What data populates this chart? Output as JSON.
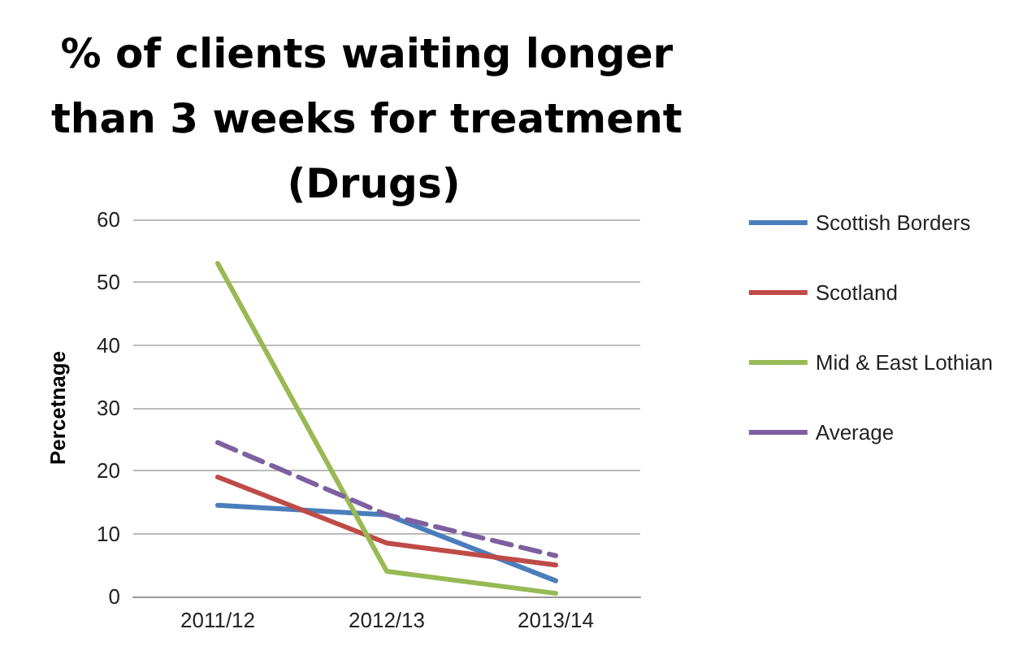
{
  "chart_data": {
    "type": "line",
    "title": "% of clients waiting longer than 3 weeks for treatment (Drugs)",
    "ylabel": "Percetnage",
    "categories": [
      "2011/12",
      "2012/13",
      "2013/14"
    ],
    "series": [
      {
        "name": "Scottish Borders",
        "color": "#4a7ebb",
        "values": [
          14.5,
          13,
          2.5
        ]
      },
      {
        "name": "Scotland",
        "color": "#be4b48",
        "values": [
          19,
          8.5,
          5
        ]
      },
      {
        "name": "Mid & East Lothian",
        "color": "#98b954",
        "values": [
          53,
          4,
          0.5
        ]
      },
      {
        "name": "Average",
        "color": "#7d60a0",
        "values": [
          24.5,
          13,
          6.5
        ],
        "line_style": "dashed"
      }
    ],
    "ylim": [
      0,
      60
    ],
    "yticks": [
      0,
      10,
      20,
      30,
      40,
      50,
      60
    ],
    "grid": "y",
    "legend": "right",
    "marker": "none"
  }
}
